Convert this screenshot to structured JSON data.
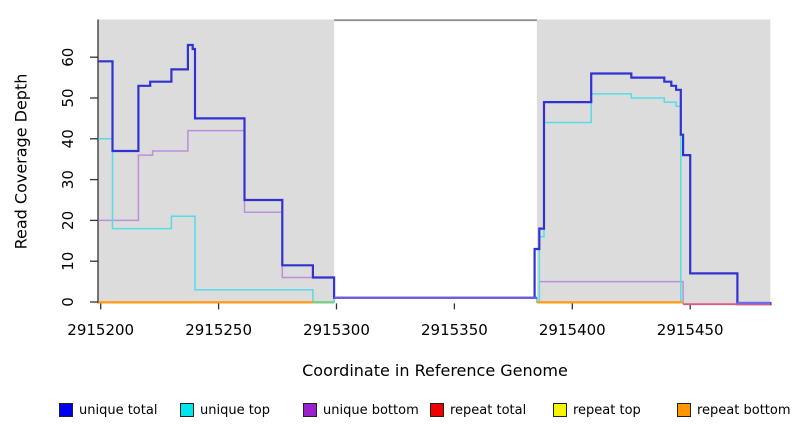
{
  "figure": {
    "xlabel": "Coordinate in Reference Genome",
    "ylabel": "Read Coverage Depth"
  },
  "chart_data": {
    "type": "line",
    "step": true,
    "title": "",
    "xlabel": "Coordinate in Reference Genome",
    "ylabel": "Read Coverage Depth",
    "xlim": [
      2915199,
      2915484
    ],
    "ylim": [
      0,
      69
    ],
    "x_ticks": [
      2915200,
      2915250,
      2915300,
      2915350,
      2915400,
      2915450
    ],
    "y_ticks": [
      0,
      10,
      20,
      30,
      40,
      50,
      60
    ],
    "grid": false,
    "legend_position": "bottom",
    "background_regions": [
      {
        "name": "exon-left",
        "x0": 2915199,
        "x1": 2915299,
        "color": "#dcdcdc"
      },
      {
        "name": "exon-right",
        "x0": 2915385,
        "x1": 2915484,
        "color": "#dcdcdc"
      }
    ],
    "intron_connector": {
      "x0": 2915299,
      "x1": 2915385,
      "color": "#8f8f8f"
    },
    "series": [
      {
        "name": "unique total",
        "color": "#3232d2",
        "width": 2.2,
        "points": [
          [
            2915199,
            59
          ],
          [
            2915205,
            37
          ],
          [
            2915216,
            53
          ],
          [
            2915221,
            54
          ],
          [
            2915230,
            57
          ],
          [
            2915237,
            63
          ],
          [
            2915239,
            62
          ],
          [
            2915240,
            45
          ],
          [
            2915261,
            25
          ],
          [
            2915277,
            9
          ],
          [
            2915290,
            6
          ],
          [
            2915299,
            0
          ],
          [
            2915384,
            13
          ],
          [
            2915386,
            18
          ],
          [
            2915388,
            49
          ],
          [
            2915408,
            56
          ],
          [
            2915425,
            55
          ],
          [
            2915439,
            54
          ],
          [
            2915442,
            53
          ],
          [
            2915444,
            52
          ],
          [
            2915446,
            41
          ],
          [
            2915447,
            36
          ],
          [
            2915450,
            7
          ],
          [
            2915470,
            0
          ],
          [
            2915484,
            0
          ]
        ]
      },
      {
        "name": "unique top",
        "color": "#55dde6",
        "width": 1.5,
        "points": [
          [
            2915199,
            40
          ],
          [
            2915205,
            18
          ],
          [
            2915230,
            21
          ],
          [
            2915240,
            3
          ],
          [
            2915290,
            0
          ],
          [
            2915299,
            0
          ],
          [
            2915385,
            0
          ],
          [
            2915386,
            16
          ],
          [
            2915388,
            44
          ],
          [
            2915408,
            51
          ],
          [
            2915425,
            50
          ],
          [
            2915439,
            49
          ],
          [
            2915444,
            48
          ],
          [
            2915446,
            0
          ],
          [
            2915447,
            0
          ]
        ]
      },
      {
        "name": "unique bottom",
        "color": "#bb8fdc",
        "width": 1.5,
        "points": [
          [
            2915199,
            20
          ],
          [
            2915216,
            36
          ],
          [
            2915222,
            37
          ],
          [
            2915237,
            42
          ],
          [
            2915261,
            22
          ],
          [
            2915277,
            6
          ],
          [
            2915299,
            0
          ],
          [
            2915385,
            0
          ],
          [
            2915386,
            5
          ],
          [
            2915447,
            0
          ]
        ]
      },
      {
        "name": "repeat total",
        "color": "#e0557d",
        "width": 1.5,
        "points": [
          [
            2915447,
            0
          ],
          [
            2915484,
            0
          ]
        ]
      },
      {
        "name": "repeat top",
        "color": "#f5f500",
        "width": 1.5,
        "points": [
          [
            2915290,
            0
          ],
          [
            2915299,
            0
          ]
        ]
      },
      {
        "name": "repeat bottom",
        "color": "#ff9d1c",
        "width": 2,
        "points": [
          [
            2915199,
            0
          ],
          [
            2915290,
            0
          ],
          [
            2915385,
            0
          ],
          [
            2915447,
            0
          ]
        ]
      }
    ],
    "baseline_segments": [
      {
        "name": "repeat-bottom-baseline-left",
        "x0": 2915199,
        "x1": 2915290,
        "y": 302.3,
        "w": 2.4,
        "color": "#ff9d1c"
      },
      {
        "name": "overlap-baseline-green",
        "x0": 2915290,
        "x1": 2915299,
        "y": 302.3,
        "w": 2.4,
        "color": "#7ccd87"
      },
      {
        "name": "zero-line-intron",
        "x0": 2915299,
        "x1": 2915385,
        "y": 297.8,
        "w": 2.4,
        "color": "#6b5ce0"
      },
      {
        "name": "repeat-bottom-baseline-right",
        "x0": 2915385,
        "x1": 2915447,
        "y": 302.3,
        "w": 2.4,
        "color": "#ff9d1c"
      },
      {
        "name": "repeat-total-baseline-right",
        "x0": 2915447,
        "x1": 2915484,
        "y": 304.2,
        "w": 1.8,
        "color": "#e0557d"
      },
      {
        "name": "zero-line-right",
        "x0": 2915470,
        "x1": 2915484,
        "y": 302.8,
        "w": 2.2,
        "color": "#6b6bee"
      }
    ],
    "legend": [
      {
        "label": "unique total",
        "color": "#0000ee"
      },
      {
        "label": "unique top",
        "color": "#00e5ee"
      },
      {
        "label": "unique bottom",
        "color": "#9a20d0"
      },
      {
        "label": "repeat total",
        "color": "#ee0000"
      },
      {
        "label": "repeat top",
        "color": "#f5f500"
      },
      {
        "label": "repeat bottom",
        "color": "#ff9800"
      }
    ]
  }
}
